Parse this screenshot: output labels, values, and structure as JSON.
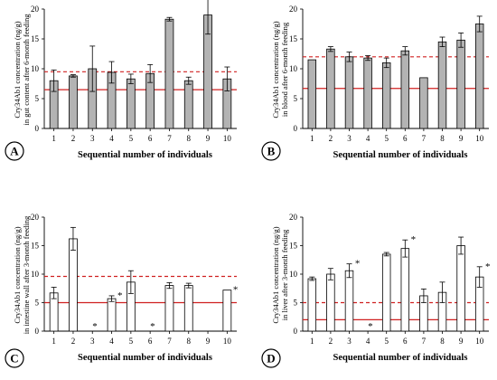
{
  "chart_data": [
    {
      "type": "bar",
      "panel_label": "A",
      "categories": [
        "1",
        "2",
        "3",
        "4",
        "5",
        "6",
        "7",
        "8",
        "9",
        "10"
      ],
      "values": [
        8.0,
        8.8,
        10.0,
        9.4,
        8.3,
        9.2,
        18.3,
        8.0,
        19.0,
        8.3
      ],
      "errors": [
        1.8,
        0.2,
        3.8,
        1.8,
        0.8,
        1.5,
        0.3,
        0.6,
        3.2,
        2.0
      ],
      "stars": [],
      "bar_fill": "#b3b3b3",
      "ylabel_line1": "Cry34Ab1 concentration (ng/g)",
      "ylabel_line2": "in gut content after 6-month feeding",
      "xlabel": "Sequential number of individuals",
      "ylim": [
        0,
        20
      ],
      "yticks": [
        "0",
        "5",
        "10",
        "15",
        "20"
      ],
      "solid_line": 6.5,
      "dashed_line": 9.5,
      "line_color": "#d02020",
      "grid": false
    },
    {
      "type": "bar",
      "panel_label": "B",
      "categories": [
        "1",
        "2",
        "3",
        "4",
        "5",
        "6",
        "7",
        "8",
        "9",
        "10"
      ],
      "values": [
        11.5,
        13.3,
        12.0,
        11.8,
        11.0,
        13.0,
        8.5,
        14.5,
        14.8,
        17.5
      ],
      "errors": [
        0.0,
        0.4,
        0.8,
        0.4,
        0.8,
        0.7,
        0.0,
        0.8,
        1.2,
        1.3
      ],
      "stars": [],
      "bar_fill": "#b3b3b3",
      "ylabel_line1": "Cry34Ab1 concentration (ng/g)",
      "ylabel_line2": "in blood after 6-month feeding",
      "xlabel": "Sequential number of individuals",
      "ylim": [
        0,
        20
      ],
      "yticks": [
        "0",
        "5",
        "10",
        "15",
        "20"
      ],
      "solid_line": 6.7,
      "dashed_line": 12.0,
      "line_color": "#d02020",
      "grid": false
    },
    {
      "type": "bar",
      "panel_label": "C",
      "categories": [
        "1",
        "2",
        "3",
        "4",
        "5",
        "6",
        "7",
        "8",
        "9",
        "10"
      ],
      "values": [
        6.7,
        16.2,
        0,
        5.7,
        8.6,
        0,
        8.0,
        8.0,
        0,
        7.2
      ],
      "errors": [
        1.0,
        2.0,
        0,
        0.5,
        2.0,
        0,
        0.5,
        0.4,
        0,
        0
      ],
      "stars": [
        "3",
        "4",
        "6",
        "10"
      ],
      "bar_fill": "#ffffff",
      "ylabel_line1": "Cry34Ab1 concentration (ng/g)",
      "ylabel_line2": "in intestine wall after 3-month feeding",
      "xlabel": "Sequential number of individuals",
      "ylim": [
        0,
        20
      ],
      "yticks": [
        "0",
        "5",
        "10",
        "15",
        "20"
      ],
      "solid_line": 5.0,
      "dashed_line": 9.6,
      "line_color": "#d02020",
      "grid": false
    },
    {
      "type": "bar",
      "panel_label": "D",
      "categories": [
        "1",
        "2",
        "3",
        "4",
        "5",
        "6",
        "7",
        "8",
        "9",
        "10"
      ],
      "values": [
        9.2,
        10.0,
        10.6,
        0,
        13.5,
        14.5,
        6.2,
        6.8,
        15.0,
        9.5
      ],
      "errors": [
        0.3,
        1.0,
        1.2,
        0,
        0.3,
        1.5,
        1.2,
        1.8,
        1.5,
        1.8
      ],
      "stars": [
        "3",
        "4",
        "6",
        "10"
      ],
      "bar_fill": "#ffffff",
      "ylabel_line1": "Cry34Ab1 concentration (ng/g)",
      "ylabel_line2": "in liver after 3-month feeding",
      "xlabel": "Sequential number of individuals",
      "ylim": [
        0,
        20
      ],
      "yticks": [
        "0",
        "5",
        "10",
        "15",
        "20"
      ],
      "solid_line": 2.0,
      "dashed_line": 5.0,
      "line_color": "#d02020",
      "grid": false
    }
  ]
}
